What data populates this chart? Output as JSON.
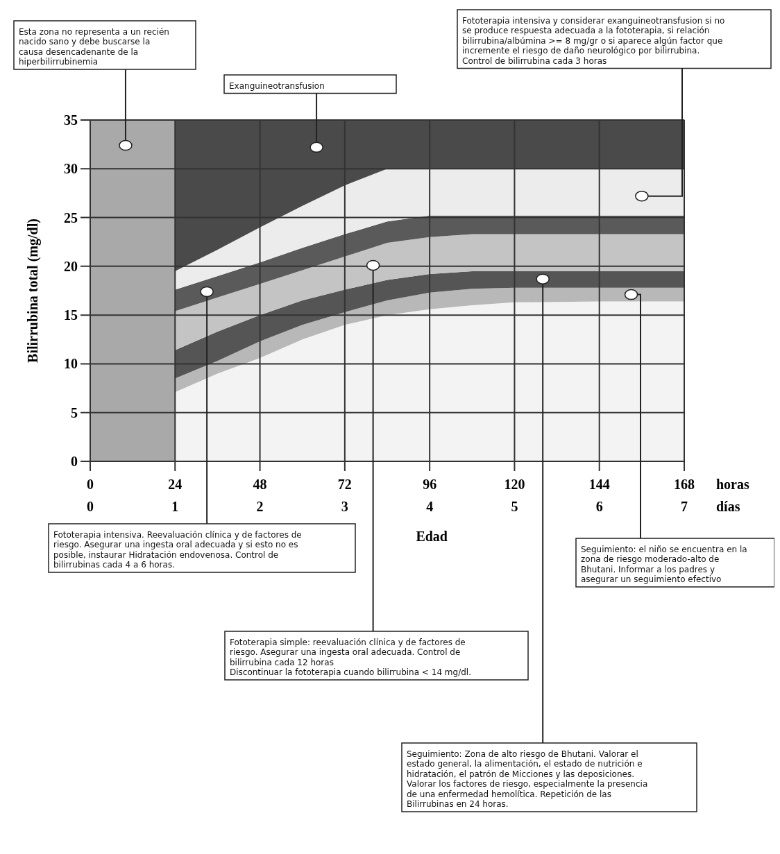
{
  "chart_data": {
    "type": "area",
    "stacked": true,
    "xlabel": "Edad",
    "ylabel": "Bilirrubina total (mg/dl)",
    "x2label": "días",
    "x": [
      24,
      36,
      48,
      60,
      72,
      84,
      96,
      108,
      120,
      144,
      168
    ],
    "series": [
      {
        "color": "#f3f3f3",
        "values": [
          7.1,
          9.0,
          10.6,
          12.5,
          14.0,
          15.0,
          15.6,
          16.0,
          16.3,
          16.4,
          16.4
        ]
      },
      {
        "color": "#b8b8b8",
        "values": [
          1.4,
          1.3,
          1.7,
          1.5,
          1.3,
          1.5,
          1.7,
          1.7,
          1.5,
          1.4,
          1.4
        ]
      },
      {
        "color": "#555555",
        "values": [
          2.9,
          3.0,
          2.7,
          2.5,
          2.3,
          2.1,
          1.9,
          1.8,
          1.7,
          1.7,
          1.7
        ]
      },
      {
        "color": "#c4c4c4",
        "values": [
          4.0,
          3.5,
          3.2,
          3.1,
          3.4,
          3.8,
          3.8,
          3.8,
          3.8,
          3.8,
          3.8
        ]
      },
      {
        "color": "#5a5a5a",
        "values": [
          2.2,
          2.2,
          2.2,
          2.3,
          2.3,
          2.2,
          2.2,
          1.9,
          1.9,
          1.9,
          1.9
        ]
      },
      {
        "color": "#ececec",
        "values": [
          1.9,
          2.7,
          3.6,
          4.3,
          5.0,
          5.4,
          4.8,
          4.8,
          4.8,
          4.8,
          4.8
        ]
      },
      {
        "color": "#4a4a4a",
        "values": [
          15.5,
          13.3,
          11.0,
          8.8,
          6.7,
          5.0,
          5.0,
          5.0,
          5.0,
          5.0,
          5.0
        ]
      }
    ],
    "bands": [
      {
        "axis": "x",
        "from": 0,
        "to": 24,
        "color": "#a9a9a9"
      }
    ],
    "xlim": [
      0,
      168
    ],
    "xticks": [
      0,
      24,
      48,
      72,
      96,
      120,
      144,
      168
    ],
    "x2lim": [
      0,
      7
    ],
    "x2ticks": [
      0,
      1,
      2,
      3,
      4,
      5,
      6,
      7
    ],
    "ylim": [
      0,
      35
    ],
    "yticks": [
      0,
      5,
      10,
      15,
      20,
      25,
      30,
      35
    ],
    "grid": true,
    "annotations": [
      {
        "text": "Esta zona no representa a un recién nacido sano y debe buscarse la causa desencadenante de la hiperbilirrubinemia",
        "x": 10,
        "y": 32.4
      },
      {
        "text": "Exanguineotransfusion",
        "x": 64,
        "y": 32.2
      },
      {
        "text": "Fototerapia intensiva y considerar exanguineotransfusion si no se produce respuesta adecuada a la fototerapia, si relación bilirrubina/albúmina >= 8 mg/gr o si aparece algún factor que incremente el riesgo de daño neurológico por bilirrubina. Control de bilirrubina cada 3 horas",
        "x": 156,
        "y": 27.2
      },
      {
        "text": "Fototerapia intensiva. Reevaluación clínica y de factores de riesgo. Asegurar una ingesta oral adecuada y si esto no es posible, instaurar Hidratación endovenosa. Control de bilirrubinas cada 4 a 6 horas.",
        "x": 33,
        "y": 17.4
      },
      {
        "text": "Fototerapia simple: reevaluación clínica y de factores de riesgo. Asegurar una ingesta oral adecuada. Control de bilirrubina cada 12 horas\nDiscontinuar la fototerapia cuando bilirrubina < 14 mg/dl.",
        "x": 80,
        "y": 20.1
      },
      {
        "text": "Seguimiento: Zona de alto riesgo de Bhutani. Valorar el estado general, la alimentación, el estado de nutrición e hidratación, el patrón de Micciones y las deposiciones. Valorar los factores de riesgo, especialmente la presencia de una enfermedad hemolítica. Repetición de las Bilirrubinas en 24 horas.",
        "x": 128,
        "y": 18.7
      },
      {
        "text": "Seguimiento: el niño se encuentra en la zona de riesgo moderado-alto de Bhutani. Informar a los padres y asegurar un seguimiento efectivo",
        "x": 153,
        "y": 17.1
      },
      "horas"
    ]
  }
}
